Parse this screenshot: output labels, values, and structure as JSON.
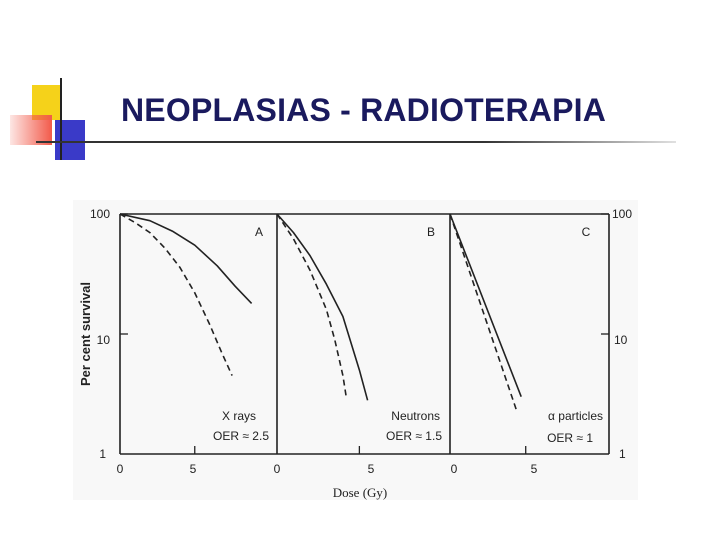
{
  "slide": {
    "title": "NEOPLASIAS - RADIOTERAPIA"
  },
  "colors": {
    "title": "#1a1a5e",
    "logo_yellow": "#f5d21a",
    "logo_red": "#f25a4a",
    "logo_blue": "#3a3ac8",
    "curves": "#222222"
  },
  "chart_data": {
    "type": "line",
    "xlabel": "Dose (Gy)",
    "ylabel": "Per cent survival",
    "yscale": "log",
    "ylim": [
      1,
      100
    ],
    "y_ticks": [
      "100",
      "10",
      "1"
    ],
    "grid": false,
    "panels": [
      {
        "id": "A",
        "xlim": [
          0,
          10.5
        ],
        "x_ticks": [
          "0",
          "5"
        ],
        "label_radiation": "X rays",
        "label_oer": "OER ≈ 2.5",
        "series": [
          {
            "style": "solid",
            "x": [
              0,
              2,
              3.5,
              5,
              6.5,
              7.7,
              8.8
            ],
            "y": [
              100,
              88,
              72,
              55,
              37,
              25,
              18
            ]
          },
          {
            "style": "dashed",
            "x": [
              0,
              1,
              2,
              3,
              4,
              5,
              6,
              6.8,
              7.5
            ],
            "y": [
              100,
              85,
              70,
              52,
              36,
              22,
              12,
              7,
              4.5
            ]
          }
        ]
      },
      {
        "id": "B",
        "xlim": [
          0,
          10.5
        ],
        "x_ticks": [
          "0",
          "5"
        ],
        "label_radiation": "Neutrons",
        "label_oer": "OER ≈ 1.5",
        "series": [
          {
            "style": "solid",
            "x": [
              0,
              1,
              2,
              3,
              4,
              5,
              5.5
            ],
            "y": [
              100,
              70,
              45,
              26,
              14,
              5,
              2.8
            ]
          },
          {
            "style": "dashed",
            "x": [
              0,
              1,
              2,
              3,
              3.5,
              4,
              4.2
            ],
            "y": [
              100,
              62,
              34,
              16,
              9,
              4.5,
              3
            ]
          }
        ]
      },
      {
        "id": "C",
        "xlim": [
          0,
          10.5
        ],
        "x_ticks": [
          "0",
          "5"
        ],
        "label_radiation": "α particles",
        "label_oer": "OER ≈ 1",
        "series": [
          {
            "style": "solid",
            "x": [
              0,
              4.7
            ],
            "y": [
              100,
              3
            ]
          },
          {
            "style": "dashed",
            "x": [
              0,
              4.4
            ],
            "y": [
              100,
              2.3
            ]
          }
        ]
      }
    ]
  }
}
